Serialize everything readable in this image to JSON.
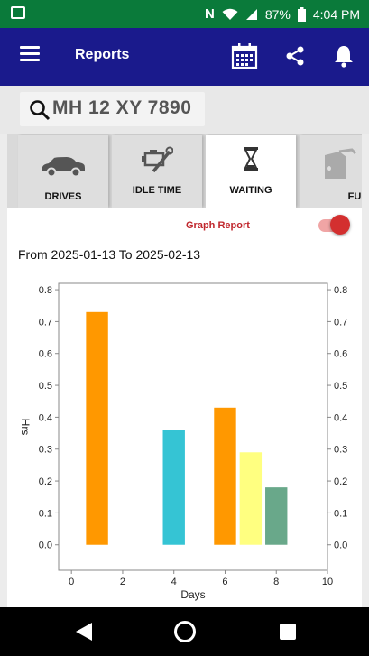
{
  "status": {
    "battery": "87%",
    "time": "4:04 PM"
  },
  "appbar": {
    "title": "Reports"
  },
  "search": {
    "plate": "MH 12 XY 7890"
  },
  "tabs": [
    {
      "label": "DRIVES",
      "icon": "car-icon"
    },
    {
      "label": "IDLE TIME",
      "icon": "engine-wrench-icon"
    },
    {
      "label": "WAITING",
      "icon": "hourglass-icon",
      "active": true
    },
    {
      "label": "FUEL",
      "icon": "fuel-pump-icon"
    }
  ],
  "report": {
    "toggle_label": "Graph Report",
    "toggle_on": true,
    "date_range": "From 2025-01-13 To 2025-02-13"
  },
  "chart_data": {
    "type": "bar",
    "xlabel": "Days",
    "ylabel": "Hrs",
    "xlim": [
      -0.5,
      10
    ],
    "ylim": [
      -0.08,
      0.82
    ],
    "x_ticks": [
      "0",
      "2",
      "4",
      "6",
      "8",
      "10"
    ],
    "y_ticks": [
      "0.0",
      "0.1",
      "0.2",
      "0.3",
      "0.4",
      "0.5",
      "0.6",
      "0.7",
      "0.8"
    ],
    "right_axis_mirror": true,
    "bars": [
      {
        "x": 1,
        "y": 0.73,
        "color": "#ff9800"
      },
      {
        "x": 4,
        "y": 0.36,
        "color": "#35c4d4"
      },
      {
        "x": 6,
        "y": 0.43,
        "color": "#ff9800"
      },
      {
        "x": 7,
        "y": 0.29,
        "color": "#ffff80"
      },
      {
        "x": 8,
        "y": 0.18,
        "color": "#69a88a"
      }
    ]
  },
  "colors": {
    "status_bar": "#0a7a3a",
    "app_bar": "#1a1a8c",
    "toggle": "#d32f2f"
  }
}
